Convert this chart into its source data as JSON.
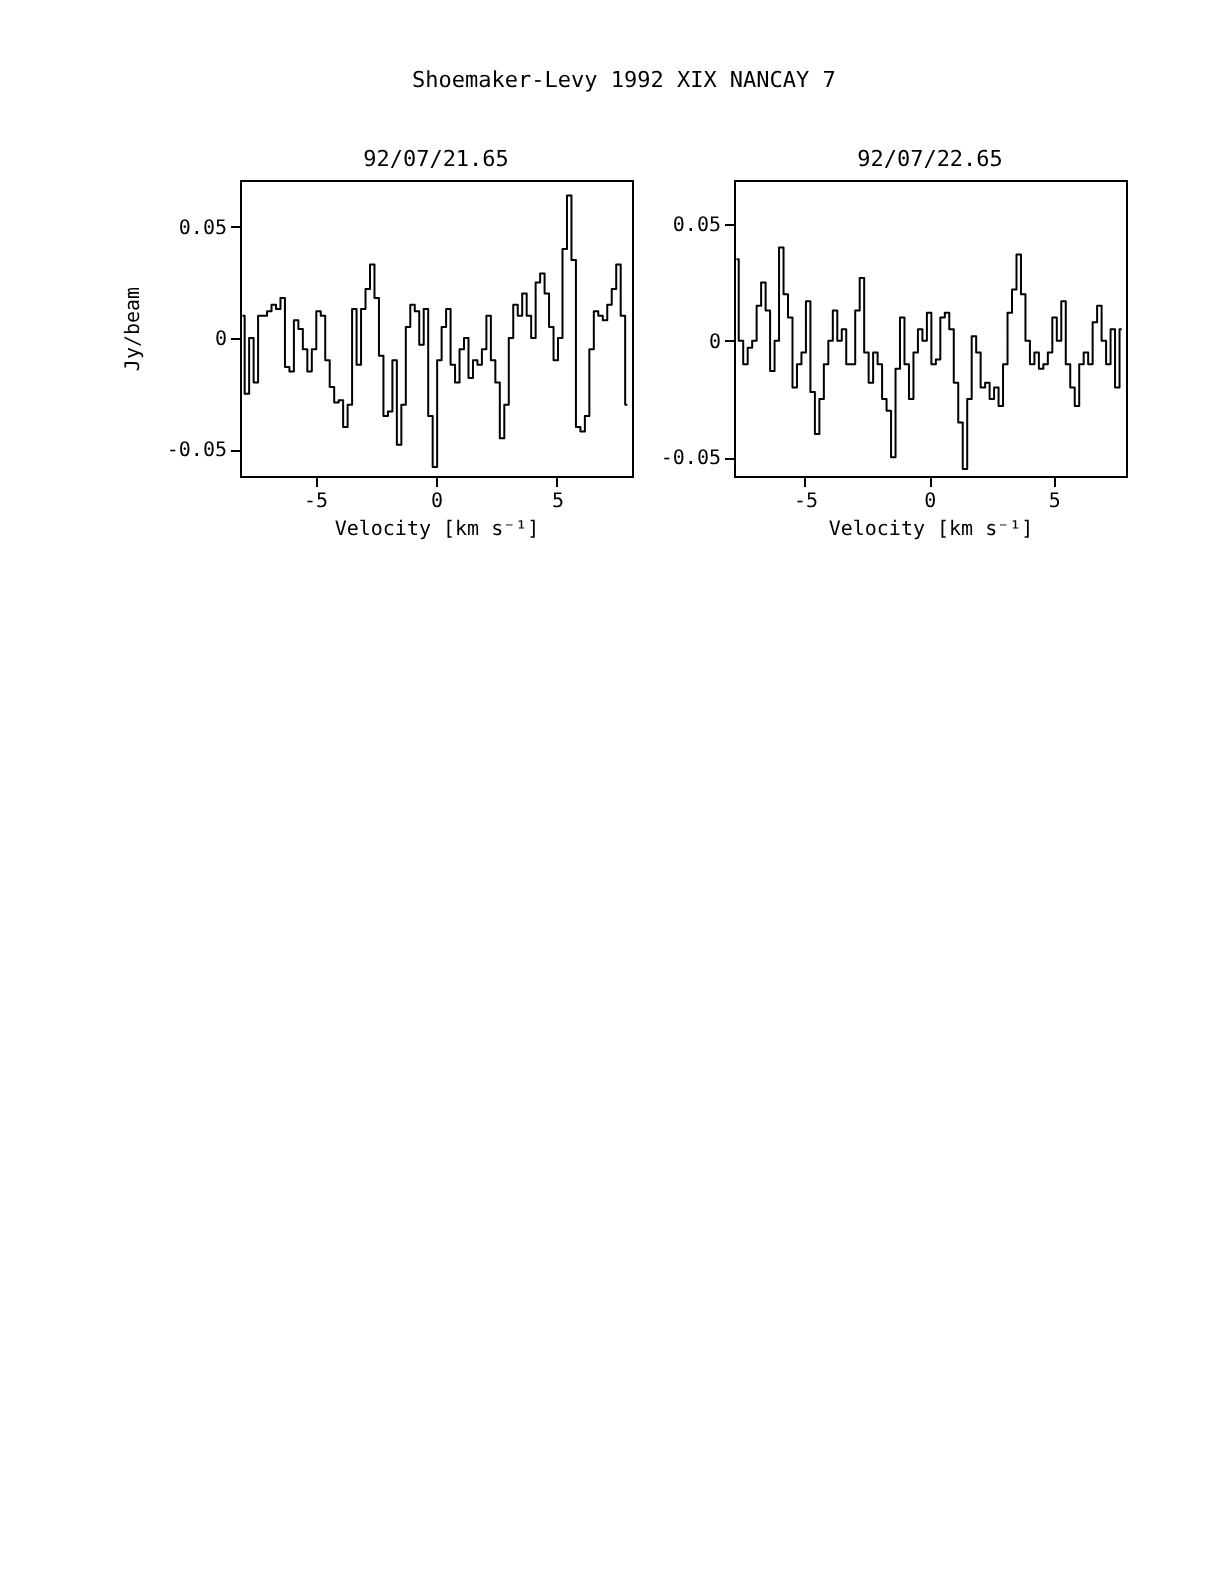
{
  "chart_data": [
    {
      "type": "step",
      "title": "92/07/21.65",
      "xlabel": "Velocity [km s⁻¹]",
      "ylabel": "Jy/beam",
      "annotations": [
        "Shoemaker-Levy 1992 XIX   NANCAY      7"
      ],
      "color": "#000000",
      "xlim": [
        -8.1,
        8.1
      ],
      "ylim": [
        -0.062,
        0.071
      ],
      "xticks": [
        -5,
        0,
        5
      ],
      "yticks": [
        -0.05,
        0,
        0.05
      ],
      "grid": false,
      "x": [
        -8.0,
        -7.815,
        -7.63,
        -7.445,
        -7.26,
        -7.075,
        -6.89,
        -6.705,
        -6.52,
        -6.335,
        -6.15,
        -5.965,
        -5.78,
        -5.595,
        -5.41,
        -5.225,
        -5.04,
        -4.855,
        -4.67,
        -4.485,
        -4.3,
        -4.115,
        -3.93,
        -3.745,
        -3.56,
        -3.375,
        -3.19,
        -3.005,
        -2.82,
        -2.635,
        -2.45,
        -2.265,
        -2.08,
        -1.895,
        -1.71,
        -1.525,
        -1.34,
        -1.155,
        -0.97,
        -0.785,
        -0.6,
        -0.415,
        -0.23,
        -0.045,
        0.14,
        0.325,
        0.51,
        0.695,
        0.88,
        1.065,
        1.25,
        1.435,
        1.62,
        1.805,
        1.99,
        2.175,
        2.36,
        2.545,
        2.73,
        2.915,
        3.1,
        3.285,
        3.47,
        3.655,
        3.84,
        4.025,
        4.21,
        4.395,
        4.58,
        4.765,
        4.95,
        5.135,
        5.32,
        5.505,
        5.69,
        5.875,
        6.06,
        6.245,
        6.43,
        6.615,
        6.8,
        6.985,
        7.17,
        7.355,
        7.54,
        7.725,
        7.91
      ],
      "values": [
        0.01,
        -0.025,
        0.0,
        -0.02,
        0.01,
        0.01,
        0.012,
        0.015,
        0.013,
        0.018,
        -0.013,
        -0.015,
        0.008,
        0.004,
        -0.005,
        -0.015,
        -0.005,
        0.012,
        0.01,
        -0.01,
        -0.022,
        -0.029,
        -0.028,
        -0.04,
        -0.03,
        0.013,
        -0.012,
        0.013,
        0.022,
        0.033,
        0.018,
        -0.008,
        -0.035,
        -0.033,
        -0.01,
        -0.048,
        -0.03,
        0.005,
        0.015,
        0.012,
        -0.003,
        0.013,
        -0.035,
        -0.058,
        -0.01,
        0.005,
        0.013,
        -0.012,
        -0.02,
        -0.005,
        0.0,
        -0.018,
        -0.01,
        -0.012,
        -0.005,
        0.01,
        -0.01,
        -0.02,
        -0.045,
        -0.03,
        0.0,
        0.015,
        0.01,
        0.02,
        0.01,
        0.0,
        0.025,
        0.029,
        0.02,
        0.005,
        -0.01,
        0.0,
        0.04,
        0.064,
        0.035,
        -0.04,
        -0.042,
        -0.035,
        -0.005,
        0.012,
        0.01,
        0.008,
        0.015,
        0.022,
        0.033,
        0.01,
        -0.03
      ]
    },
    {
      "type": "step",
      "title": "92/07/22.65",
      "xlabel": "Velocity [km s⁻¹]",
      "color": "#000000",
      "xlim": [
        -7.85,
        7.9
      ],
      "ylim": [
        -0.058,
        0.069
      ],
      "xticks": [
        -5,
        0,
        5
      ],
      "yticks": [
        -0.05,
        0,
        0.05
      ],
      "grid": false,
      "x": [
        -7.75,
        -7.57,
        -7.39,
        -7.21,
        -7.03,
        -6.85,
        -6.67,
        -6.49,
        -6.31,
        -6.13,
        -5.95,
        -5.77,
        -5.59,
        -5.41,
        -5.23,
        -5.05,
        -4.87,
        -4.69,
        -4.51,
        -4.33,
        -4.15,
        -3.97,
        -3.79,
        -3.61,
        -3.43,
        -3.25,
        -3.07,
        -2.89,
        -2.71,
        -2.53,
        -2.35,
        -2.17,
        -1.99,
        -1.81,
        -1.63,
        -1.45,
        -1.27,
        -1.09,
        -0.91,
        -0.73,
        -0.55,
        -0.37,
        -0.19,
        -0.01,
        0.17,
        0.35,
        0.53,
        0.71,
        0.89,
        1.07,
        1.25,
        1.43,
        1.61,
        1.79,
        1.97,
        2.15,
        2.33,
        2.51,
        2.69,
        2.87,
        3.05,
        3.23,
        3.41,
        3.59,
        3.77,
        3.95,
        4.13,
        4.31,
        4.49,
        4.67,
        4.85,
        5.03,
        5.21,
        5.39,
        5.57,
        5.75,
        5.93,
        6.11,
        6.29,
        6.47,
        6.65,
        6.83,
        7.01,
        7.19,
        7.37,
        7.55,
        7.73
      ],
      "values": [
        0.035,
        0.0,
        -0.01,
        -0.003,
        0.0,
        0.015,
        0.025,
        0.013,
        -0.013,
        0.0,
        0.04,
        0.02,
        0.01,
        -0.02,
        -0.01,
        -0.005,
        0.017,
        -0.022,
        -0.04,
        -0.025,
        -0.01,
        0.0,
        0.013,
        0.0,
        0.005,
        -0.01,
        -0.01,
        0.013,
        0.027,
        -0.005,
        -0.018,
        -0.005,
        -0.01,
        -0.025,
        -0.03,
        -0.05,
        -0.012,
        0.01,
        -0.01,
        -0.025,
        -0.005,
        0.005,
        0.0,
        0.012,
        -0.01,
        -0.008,
        0.01,
        0.012,
        0.005,
        -0.018,
        -0.035,
        -0.055,
        -0.025,
        0.002,
        -0.005,
        -0.02,
        -0.018,
        -0.025,
        -0.02,
        -0.028,
        -0.01,
        0.012,
        0.022,
        0.037,
        0.02,
        0.0,
        -0.01,
        -0.005,
        -0.012,
        -0.01,
        -0.005,
        0.01,
        0.0,
        0.017,
        -0.01,
        -0.02,
        -0.028,
        -0.01,
        -0.005,
        -0.01,
        0.008,
        0.015,
        0.0,
        -0.01,
        0.005,
        -0.02,
        0.005
      ]
    }
  ]
}
